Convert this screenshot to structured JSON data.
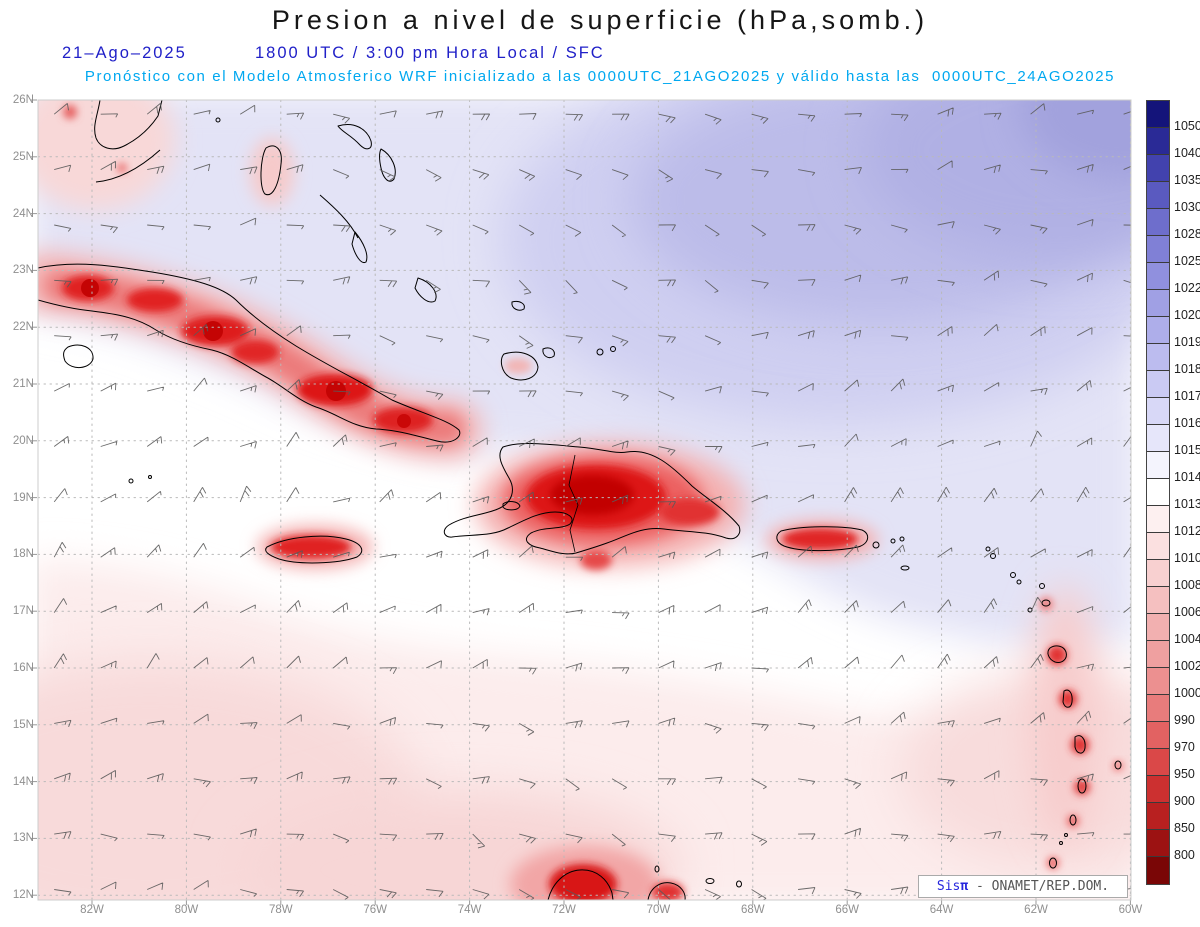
{
  "header": {
    "title": "Presion a nivel de superficie (hPa,somb.)",
    "date": "21–Ago–2025",
    "time_info": "1800 UTC / 3:00 pm Hora Local / SFC",
    "forecast_line": "Pronóstico con el Modelo Atmosferico WRF inicializado a las 0000UTC_21AGO2025 y válido hasta las  0000UTC_24AGO2025"
  },
  "axes": {
    "lat_labels": [
      "26N",
      "25N",
      "24N",
      "23N",
      "22N",
      "21N",
      "20N",
      "19N",
      "18N",
      "17N",
      "16N",
      "15N",
      "14N",
      "13N",
      "12N"
    ],
    "lon_labels": [
      "82W",
      "80W",
      "78W",
      "76W",
      "74W",
      "72W",
      "70W",
      "68W",
      "66W",
      "64W",
      "62W",
      "60W"
    ]
  },
  "colorbar": {
    "unit": "hPa",
    "values": [
      "1050",
      "1040",
      "1035",
      "1030",
      "1028",
      "1025",
      "1022",
      "1020",
      "1019",
      "1018",
      "1017",
      "1016",
      "1015",
      "1014",
      "1013",
      "1012",
      "1010",
      "1008",
      "1006",
      "1004",
      "1002",
      "1000",
      "990",
      "970",
      "950",
      "900",
      "850",
      "800"
    ],
    "colors": [
      "#14147a",
      "#2a2a96",
      "#4242ae",
      "#5a5ac0",
      "#6e6ecc",
      "#8080d6",
      "#9090de",
      "#a0a0e4",
      "#aeaeea",
      "#bcbcef",
      "#cacaf3",
      "#d8d8f7",
      "#e6e6fa",
      "#f4f4fd",
      "#ffffff",
      "#fdf0f0",
      "#fbe0e0",
      "#f8d0d0",
      "#f5c0c0",
      "#f2b0b0",
      "#efa0a0",
      "#ec9090",
      "#e87c7c",
      "#e26262",
      "#da4848",
      "#cc3030",
      "#b82020",
      "#9c1212",
      "#7a0606"
    ]
  },
  "attribution": {
    "brand": "Sis",
    "symbol": "π",
    "text": " - ONAMET/REP.DOM."
  },
  "style": {
    "grid_color": "#b9b9b9",
    "coast_color": "#000000",
    "barb_color": "#5a5a5a",
    "label_color": "#8f8f8f",
    "header_blue": "#2020c8",
    "header_cyan": "#00a8f0"
  }
}
